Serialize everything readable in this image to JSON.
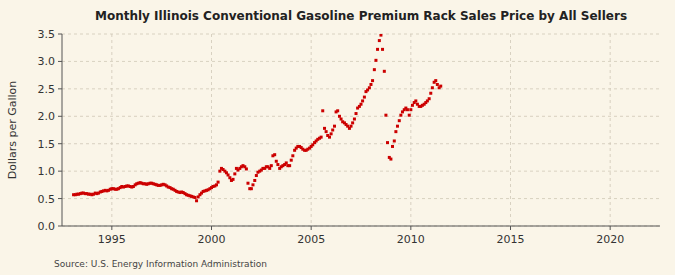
{
  "chart_data": {
    "type": "scatter",
    "title": "Monthly Illinois Conventional Gasoline Premium Rack Sales Price by All Sellers",
    "ylabel": "Dollars per Gallon",
    "annotations": [
      "Source: U.S. Energy Information Administration"
    ],
    "color": "#cc0000",
    "marker": "square",
    "grid": true,
    "xlim": [
      1992.5,
      2022.5
    ],
    "xticks": [
      1995,
      2000,
      2005,
      2010,
      2015,
      2020
    ],
    "ylim": [
      0.0,
      3.5
    ],
    "yticks": [
      {
        "value": 0,
        "label": "0.0"
      },
      0.5,
      {
        "value": 1,
        "label": "1.0"
      },
      1.5,
      {
        "value": 2,
        "label": "2.0"
      },
      2.5,
      {
        "value": 3,
        "label": "3.0"
      },
      3.5
    ],
    "x": [
      1993.08,
      1993.17,
      1993.25,
      1993.33,
      1993.42,
      1993.5,
      1993.58,
      1993.67,
      1993.75,
      1993.83,
      1993.92,
      1994.0,
      1994.08,
      1994.17,
      1994.25,
      1994.33,
      1994.42,
      1994.5,
      1994.58,
      1994.67,
      1994.75,
      1994.83,
      1994.92,
      1995.0,
      1995.08,
      1995.17,
      1995.25,
      1995.33,
      1995.42,
      1995.5,
      1995.58,
      1995.67,
      1995.75,
      1995.83,
      1995.92,
      1996.0,
      1996.08,
      1996.17,
      1996.25,
      1996.33,
      1996.42,
      1996.5,
      1996.58,
      1996.67,
      1996.75,
      1996.83,
      1996.92,
      1997.0,
      1997.08,
      1997.17,
      1997.25,
      1997.33,
      1997.42,
      1997.5,
      1997.58,
      1997.67,
      1997.75,
      1997.83,
      1997.92,
      1998.0,
      1998.08,
      1998.17,
      1998.25,
      1998.33,
      1998.42,
      1998.5,
      1998.58,
      1998.67,
      1998.75,
      1998.83,
      1998.92,
      1999.0,
      1999.08,
      1999.17,
      1999.25,
      1999.33,
      1999.42,
      1999.5,
      1999.58,
      1999.67,
      1999.75,
      1999.83,
      1999.92,
      2000.0,
      2000.08,
      2000.17,
      2000.25,
      2000.33,
      2000.42,
      2000.5,
      2000.58,
      2000.67,
      2000.75,
      2000.83,
      2000.92,
      2001.0,
      2001.08,
      2001.17,
      2001.25,
      2001.33,
      2001.42,
      2001.5,
      2001.58,
      2001.67,
      2001.75,
      2001.83,
      2001.92,
      2002.0,
      2002.08,
      2002.17,
      2002.25,
      2002.33,
      2002.42,
      2002.5,
      2002.58,
      2002.67,
      2002.75,
      2002.83,
      2002.92,
      2003.0,
      2003.08,
      2003.17,
      2003.25,
      2003.33,
      2003.42,
      2003.5,
      2003.58,
      2003.67,
      2003.75,
      2003.83,
      2003.92,
      2004.0,
      2004.08,
      2004.17,
      2004.25,
      2004.33,
      2004.42,
      2004.5,
      2004.58,
      2004.67,
      2004.75,
      2004.83,
      2004.92,
      2005.0,
      2005.08,
      2005.17,
      2005.25,
      2005.33,
      2005.42,
      2005.5,
      2005.58,
      2005.67,
      2005.75,
      2005.83,
      2005.92,
      2006.0,
      2006.08,
      2006.17,
      2006.25,
      2006.33,
      2006.42,
      2006.5,
      2006.58,
      2006.67,
      2006.75,
      2006.83,
      2006.92,
      2007.0,
      2007.08,
      2007.17,
      2007.25,
      2007.33,
      2007.42,
      2007.5,
      2007.58,
      2007.67,
      2007.75,
      2007.83,
      2007.92,
      2008.0,
      2008.08,
      2008.17,
      2008.25,
      2008.33,
      2008.42,
      2008.5,
      2008.58,
      2008.67,
      2008.75,
      2008.83,
      2008.92,
      2009.0,
      2009.08,
      2009.17,
      2009.25,
      2009.33,
      2009.42,
      2009.5,
      2009.58,
      2009.67,
      2009.75,
      2009.83,
      2009.92,
      2010.0,
      2010.08,
      2010.17,
      2010.25,
      2010.33,
      2010.42,
      2010.5,
      2010.58,
      2010.67,
      2010.75,
      2010.83,
      2010.92,
      2011.0,
      2011.08,
      2011.17,
      2011.25,
      2011.33,
      2011.42,
      2011.5
    ],
    "values": [
      0.57,
      0.57,
      0.58,
      0.58,
      0.59,
      0.6,
      0.6,
      0.59,
      0.59,
      0.58,
      0.58,
      0.57,
      0.58,
      0.6,
      0.59,
      0.6,
      0.62,
      0.63,
      0.64,
      0.65,
      0.64,
      0.65,
      0.67,
      0.68,
      0.68,
      0.67,
      0.67,
      0.68,
      0.7,
      0.72,
      0.71,
      0.72,
      0.73,
      0.73,
      0.72,
      0.71,
      0.72,
      0.75,
      0.77,
      0.78,
      0.79,
      0.78,
      0.77,
      0.77,
      0.76,
      0.77,
      0.78,
      0.78,
      0.77,
      0.76,
      0.75,
      0.74,
      0.74,
      0.75,
      0.76,
      0.75,
      0.73,
      0.71,
      0.7,
      0.68,
      0.67,
      0.65,
      0.63,
      0.62,
      0.61,
      0.62,
      0.61,
      0.59,
      0.57,
      0.56,
      0.55,
      0.54,
      0.53,
      0.52,
      0.46,
      0.53,
      0.57,
      0.6,
      0.63,
      0.64,
      0.65,
      0.66,
      0.68,
      0.7,
      0.72,
      0.73,
      0.75,
      0.8,
      1.0,
      1.05,
      1.03,
      1.0,
      0.97,
      0.93,
      0.88,
      0.83,
      0.85,
      0.95,
      1.05,
      1.02,
      1.05,
      1.08,
      1.1,
      1.08,
      1.04,
      0.78,
      0.68,
      0.68,
      0.75,
      0.83,
      0.92,
      0.98,
      1.0,
      1.02,
      1.05,
      1.05,
      1.08,
      1.08,
      1.05,
      1.1,
      1.28,
      1.3,
      1.18,
      1.12,
      1.05,
      1.08,
      1.1,
      1.12,
      1.15,
      1.1,
      1.1,
      1.2,
      1.28,
      1.38,
      1.42,
      1.45,
      1.45,
      1.43,
      1.4,
      1.38,
      1.38,
      1.4,
      1.42,
      1.45,
      1.48,
      1.52,
      1.55,
      1.58,
      1.6,
      1.62,
      2.1,
      1.78,
      1.72,
      1.65,
      1.62,
      1.68,
      1.75,
      1.82,
      2.08,
      2.1,
      2.0,
      1.95,
      1.9,
      1.88,
      1.85,
      1.82,
      1.78,
      1.82,
      1.88,
      1.95,
      2.05,
      2.15,
      2.18,
      2.22,
      2.28,
      2.35,
      2.45,
      2.48,
      2.52,
      2.58,
      2.65,
      2.85,
      3.02,
      3.22,
      3.38,
      3.48,
      3.22,
      2.82,
      2.02,
      1.52,
      1.25,
      1.22,
      1.45,
      1.55,
      1.72,
      1.82,
      1.92,
      2.02,
      2.08,
      2.12,
      2.15,
      2.12,
      2.02,
      2.12,
      2.2,
      2.25,
      2.28,
      2.22,
      2.18,
      2.18,
      2.2,
      2.22,
      2.25,
      2.28,
      2.32,
      2.42,
      2.52,
      2.62,
      2.65,
      2.58,
      2.52,
      2.55
    ]
  }
}
